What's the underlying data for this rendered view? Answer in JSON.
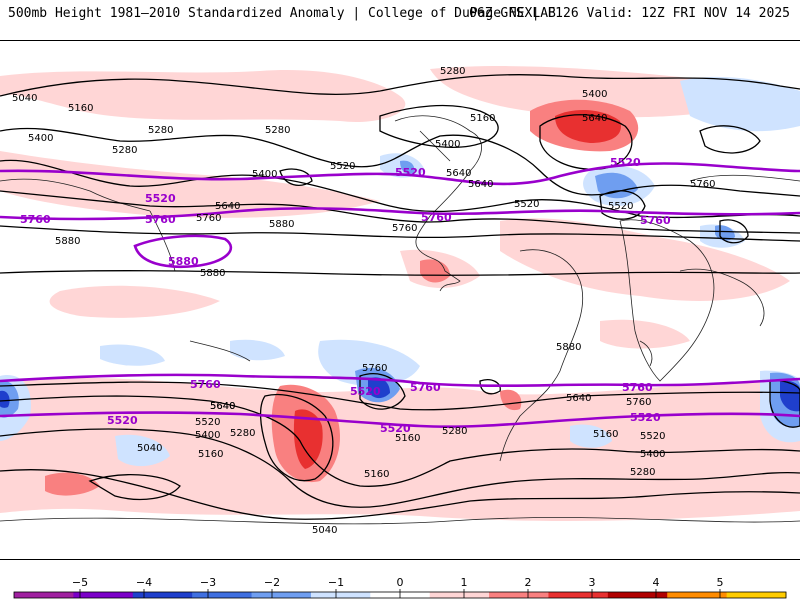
{
  "header": {
    "title_left": "500mb Height 1981–2010 Standardized Anomaly | College of DuPage NEXLAB",
    "title_right": "06Z GFS | F126 Valid: 12Z FRI NOV 14 2025"
  },
  "colors": {
    "contour": "#000000",
    "highlight_contour": "#9900cc",
    "positive_light": "#ffd6d6",
    "positive_mid": "#f98080",
    "positive_strong": "#e83030",
    "negative_light": "#cfe3ff",
    "negative_mid": "#6f9ef0",
    "negative_strong": "#1f3fcc",
    "coastline": "#222222"
  },
  "contour_labels": {
    "black": [
      "5280",
      "5040",
      "5160",
      "5400",
      "5280",
      "5280",
      "5280",
      "5520",
      "5400",
      "5640",
      "5880",
      "5880",
      "5160",
      "5400",
      "5640",
      "5760",
      "5760",
      "5880",
      "5640",
      "5400",
      "5520",
      "5640",
      "5520",
      "5760",
      "5760",
      "5640",
      "5520",
      "5400",
      "5280",
      "5160",
      "5040",
      "5040",
      "5160",
      "5280",
      "5160",
      "5640",
      "5760",
      "5520",
      "5400",
      "5280",
      "5880",
      "5640",
      "5160"
    ],
    "purple": [
      "5520",
      "5760",
      "5880",
      "5520",
      "5760",
      "5520",
      "5760",
      "5760",
      "5760",
      "5520",
      "5520",
      "5520",
      "5760",
      "5520",
      "5760"
    ]
  },
  "colorbar": {
    "ticks": [
      "−5",
      "−4",
      "−3",
      "−2",
      "−1",
      "0",
      "1",
      "2",
      "3",
      "4",
      "5"
    ],
    "segment_colors": [
      "#a020a0",
      "#7b00c8",
      "#1f3fcc",
      "#3f6fe0",
      "#6f9ef0",
      "#cfe3ff",
      "#ffffff",
      "#ffd6d6",
      "#f98080",
      "#e83030",
      "#b00000",
      "#ff8c00",
      "#ffcc00"
    ]
  }
}
